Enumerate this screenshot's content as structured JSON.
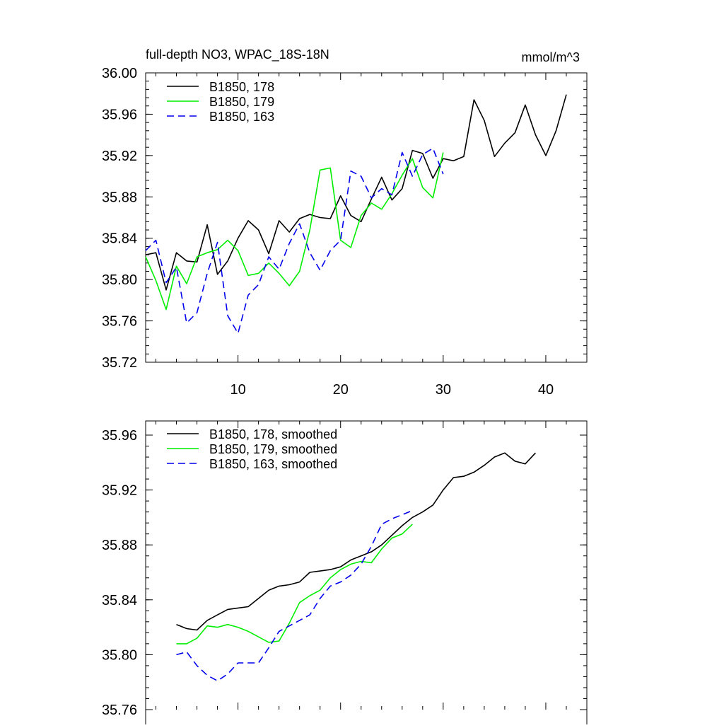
{
  "chart_data": [
    {
      "type": "line",
      "title": "full-depth NO3, WPAC_18S-18N",
      "units": "mmol/m^3",
      "xlim": [
        1,
        44
      ],
      "ylim": [
        35.72,
        36.0
      ],
      "yticks": [
        "35.72",
        "35.76",
        "35.80",
        "35.84",
        "35.88",
        "35.92",
        "35.96",
        "36.00"
      ],
      "xticks": [
        "10",
        "20",
        "30",
        "40"
      ],
      "legend_position": "top-left",
      "series": [
        {
          "name": "B1850, 178",
          "color": "#000000",
          "dash": "solid",
          "x": [
            1,
            2,
            3,
            4,
            5,
            6,
            7,
            8,
            9,
            10,
            11,
            12,
            13,
            14,
            15,
            16,
            17,
            18,
            19,
            20,
            21,
            22,
            23,
            24,
            25,
            26,
            27,
            28,
            29,
            30,
            31,
            32,
            33,
            34,
            35,
            36,
            37,
            38,
            39,
            40,
            41,
            42
          ],
          "values": [
            35.824,
            35.826,
            35.79,
            35.826,
            35.818,
            35.817,
            35.853,
            35.805,
            35.818,
            35.84,
            35.857,
            35.848,
            35.825,
            35.857,
            35.846,
            35.859,
            35.863,
            35.86,
            35.859,
            35.881,
            35.862,
            35.856,
            35.878,
            35.899,
            35.877,
            35.888,
            35.925,
            35.922,
            35.898,
            35.917,
            35.915,
            35.919,
            35.974,
            35.954,
            35.919,
            35.932,
            35.942,
            35.969,
            35.94,
            35.92,
            35.944,
            35.979
          ]
        },
        {
          "name": "B1850, 179",
          "color": "#00ee00",
          "dash": "solid",
          "x": [
            1,
            2,
            3,
            4,
            5,
            6,
            7,
            8,
            9,
            10,
            11,
            12,
            13,
            14,
            15,
            16,
            17,
            18,
            19,
            20,
            21,
            22,
            23,
            24,
            25,
            26,
            27,
            28,
            29,
            30
          ],
          "values": [
            35.822,
            35.799,
            35.771,
            35.813,
            35.796,
            35.822,
            35.826,
            35.829,
            35.838,
            35.828,
            35.804,
            35.806,
            35.816,
            35.806,
            35.794,
            35.808,
            35.848,
            35.906,
            35.908,
            35.838,
            35.831,
            35.862,
            35.874,
            35.868,
            35.883,
            35.901,
            35.917,
            35.889,
            35.879,
            35.923
          ]
        },
        {
          "name": "B1850, 163",
          "color": "#0000ee",
          "dash": "dashed",
          "x": [
            1,
            2,
            3,
            4,
            5,
            6,
            7,
            8,
            9,
            10,
            11,
            12,
            13,
            14,
            15,
            16,
            17,
            18,
            19,
            20,
            21,
            22,
            23,
            24,
            25,
            26,
            27,
            28,
            29,
            30
          ],
          "values": [
            35.828,
            35.838,
            35.797,
            35.812,
            35.758,
            35.768,
            35.806,
            35.836,
            35.765,
            35.748,
            35.785,
            35.795,
            35.822,
            35.81,
            35.835,
            35.854,
            35.826,
            35.809,
            35.828,
            35.838,
            35.905,
            35.9,
            35.879,
            35.888,
            35.882,
            35.923,
            35.9,
            35.921,
            35.927,
            35.902
          ]
        }
      ]
    },
    {
      "type": "line",
      "xlim": [
        1,
        44
      ],
      "ylim": [
        35.76,
        35.96
      ],
      "yticks": [
        "35.76",
        "35.80",
        "35.84",
        "35.88",
        "35.92",
        "35.96"
      ],
      "legend_position": "top-left",
      "series": [
        {
          "name": "B1850, 178, smoothed",
          "color": "#000000",
          "dash": "solid",
          "x": [
            4,
            5,
            6,
            7,
            8,
            9,
            10,
            11,
            12,
            13,
            14,
            15,
            16,
            17,
            18,
            19,
            20,
            21,
            22,
            23,
            24,
            25,
            26,
            27,
            28,
            29,
            30,
            31,
            32,
            33,
            34,
            35,
            36,
            37,
            38,
            39
          ],
          "values": [
            35.822,
            35.819,
            35.818,
            35.825,
            35.829,
            35.833,
            35.834,
            35.835,
            35.841,
            35.847,
            35.85,
            35.851,
            35.853,
            35.86,
            35.861,
            35.862,
            35.864,
            35.869,
            35.872,
            35.875,
            35.88,
            35.887,
            35.894,
            35.9,
            35.904,
            35.909,
            35.92,
            35.929,
            35.93,
            35.933,
            35.938,
            35.944,
            35.947,
            35.941,
            35.939,
            35.947
          ]
        },
        {
          "name": "B1850, 179, smoothed",
          "color": "#00ee00",
          "dash": "solid",
          "x": [
            4,
            5,
            6,
            7,
            8,
            9,
            10,
            11,
            12,
            13,
            14,
            15,
            16,
            17,
            18,
            19,
            20,
            21,
            22,
            23,
            24,
            25,
            26,
            27
          ],
          "values": [
            35.808,
            35.808,
            35.812,
            35.821,
            35.82,
            35.822,
            35.82,
            35.817,
            35.813,
            35.809,
            35.81,
            35.823,
            35.838,
            35.843,
            35.847,
            35.856,
            35.862,
            35.866,
            35.868,
            35.867,
            35.877,
            35.885,
            35.888,
            35.895
          ]
        },
        {
          "name": "B1850, 163, smoothed",
          "color": "#0000ee",
          "dash": "dashed",
          "x": [
            4,
            5,
            6,
            7,
            8,
            9,
            10,
            11,
            12,
            13,
            14,
            15,
            16,
            17,
            18,
            19,
            20,
            21,
            22,
            23,
            24,
            25,
            26,
            27
          ],
          "values": [
            35.8,
            35.802,
            35.792,
            35.785,
            35.781,
            35.786,
            35.794,
            35.794,
            35.794,
            35.805,
            35.817,
            35.821,
            35.825,
            35.829,
            35.841,
            35.85,
            35.853,
            35.858,
            35.866,
            35.879,
            35.895,
            35.899,
            35.902,
            35.905
          ]
        }
      ]
    }
  ]
}
